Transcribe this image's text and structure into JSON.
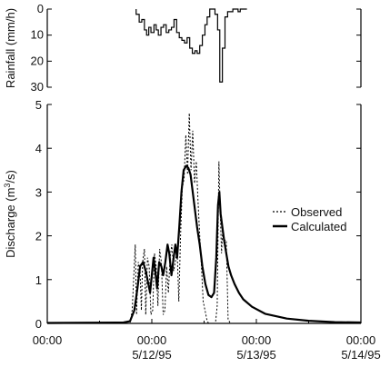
{
  "chart_data": [
    {
      "type": "step",
      "name_key": "rainfall",
      "ylabel": "Rainfall (mm/h)",
      "ylim": [
        0,
        30
      ],
      "y_inverted": true,
      "y_ticks": [
        0,
        10,
        20,
        30
      ],
      "x_unit": "hours since 5/11/95 00:00",
      "xlim": [
        0,
        72
      ],
      "series": [
        {
          "values_x": [
            20.4,
            21.1,
            21.7,
            22.3,
            22.8,
            23.3,
            23.8,
            24.5,
            25.0,
            25.5,
            26.1,
            26.7,
            27.3,
            27.9,
            28.5,
            29.1,
            29.7,
            30.3,
            30.9,
            31.5,
            32.1,
            32.7,
            33.3,
            33.9,
            34.4,
            35.0,
            35.6,
            36.2,
            36.7,
            37.3,
            37.9,
            38.5,
            39.1,
            39.6,
            40.2,
            40.8,
            41.4,
            42.0,
            42.6,
            43.2,
            43.8,
            44.3,
            45.0
          ],
          "values": [
            2,
            5,
            4,
            8,
            10,
            7,
            9,
            6,
            8,
            10,
            7,
            6,
            9,
            8,
            7,
            4,
            9,
            11,
            12,
            13,
            11,
            15,
            17,
            16,
            17,
            14,
            10,
            6,
            3,
            0,
            0,
            2,
            8,
            28,
            15,
            3,
            1,
            1,
            0,
            0,
            1,
            0,
            0
          ]
        }
      ]
    },
    {
      "type": "line",
      "name_key": "discharge",
      "ylabel": "Discharge (m³/s)",
      "ylabel_parts": [
        "Discharge (m",
        "3",
        "/s)"
      ],
      "ylim": [
        0,
        5
      ],
      "y_ticks": [
        0,
        1,
        2,
        3,
        4,
        5
      ],
      "x_unit": "hours since 5/11/95 00:00",
      "xlim": [
        0,
        72
      ],
      "x_ticks": [
        {
          "x": 0,
          "line1": "00:00",
          "line2": ""
        },
        {
          "x": 24,
          "line1": "00:00",
          "line2": "5/12/95"
        },
        {
          "x": 48,
          "line1": "00:00",
          "line2": "5/13/95"
        },
        {
          "x": 72,
          "line1": "00:00",
          "line2": "5/14/95"
        }
      ],
      "legend": [
        {
          "label": "Observed",
          "style": "dotted"
        },
        {
          "label": "Calculated",
          "style": "solid"
        }
      ],
      "series": [
        {
          "name": "Observed",
          "x": [
            0,
            19.0,
            19.5,
            20.2,
            20.5,
            20.9,
            21.3,
            21.6,
            21.9,
            22.3,
            22.6,
            23.0,
            23.4,
            23.8,
            24.2,
            24.6,
            25.0,
            25.4,
            25.8,
            26.2,
            26.6,
            27.0,
            27.4,
            27.8,
            28.2,
            28.6,
            29.0,
            29.4,
            29.8,
            30.2,
            30.6,
            31.0,
            31.4,
            31.8,
            32.2,
            32.6,
            33.0,
            33.4,
            33.8,
            34.2,
            34.6,
            35.0,
            35.4,
            35.8,
            36.2,
            36.6,
            37.0,
            37.4,
            37.8,
            38.2,
            38.6,
            39.0,
            39.4,
            39.7,
            40.0,
            40.3,
            40.7,
            41.1,
            41.5,
            42.0,
            42.5,
            72
          ],
          "values": [
            0,
            0,
            0.3,
            1.8,
            0.2,
            1.4,
            1.2,
            0.3,
            1.4,
            1.7,
            0.2,
            1.5,
            1.3,
            0.2,
            0.3,
            1.6,
            1.3,
            0.4,
            1.7,
            1.4,
            0.2,
            0.3,
            1.3,
            0.7,
            1.5,
            1.8,
            1.2,
            1.4,
            1.7,
            0.5,
            2.0,
            3.1,
            3.3,
            4.3,
            3.4,
            4.8,
            3.5,
            4.4,
            3.2,
            3.7,
            2.8,
            2.0,
            1.3,
            0.5,
            0.3,
            0.1,
            0,
            0,
            0,
            0,
            0,
            0.4,
            3.7,
            2.6,
            1.6,
            2.2,
            1.9,
            1.9,
            0.1,
            0,
            0,
            0
          ]
        },
        {
          "name": "Calculated",
          "x": [
            0,
            17.5,
            19.0,
            20.0,
            20.7,
            21.3,
            22.0,
            22.6,
            23.2,
            23.6,
            24.0,
            24.4,
            24.8,
            25.2,
            25.7,
            26.2,
            26.6,
            27.1,
            27.6,
            28.0,
            28.5,
            29.0,
            29.4,
            29.8,
            30.3,
            30.8,
            31.3,
            31.9,
            32.4,
            32.9,
            33.4,
            33.9,
            34.4,
            35.0,
            35.6,
            36.3,
            37.0,
            37.7,
            38.3,
            38.8,
            39.2,
            39.5,
            39.8,
            40.2,
            40.6,
            41.1,
            41.6,
            42.2,
            43.0,
            44.0,
            45.0,
            47.0,
            50.0,
            55.0,
            60.0,
            66.0,
            72.0
          ],
          "values": [
            0.01,
            0.02,
            0.05,
            0.3,
            0.8,
            1.3,
            1.4,
            1.2,
            0.9,
            0.7,
            1.1,
            1.5,
            1.2,
            0.8,
            1.4,
            1.3,
            1.1,
            1.4,
            1.8,
            1.6,
            1.1,
            1.5,
            1.8,
            1.5,
            2.2,
            3.0,
            3.5,
            3.6,
            3.55,
            3.4,
            3.0,
            2.6,
            2.2,
            1.8,
            1.3,
            0.9,
            0.65,
            0.6,
            0.7,
            1.5,
            2.7,
            3.0,
            2.5,
            2.2,
            1.9,
            1.6,
            1.3,
            1.1,
            0.9,
            0.7,
            0.55,
            0.38,
            0.22,
            0.11,
            0.06,
            0.03,
            0.02
          ]
        }
      ]
    }
  ]
}
